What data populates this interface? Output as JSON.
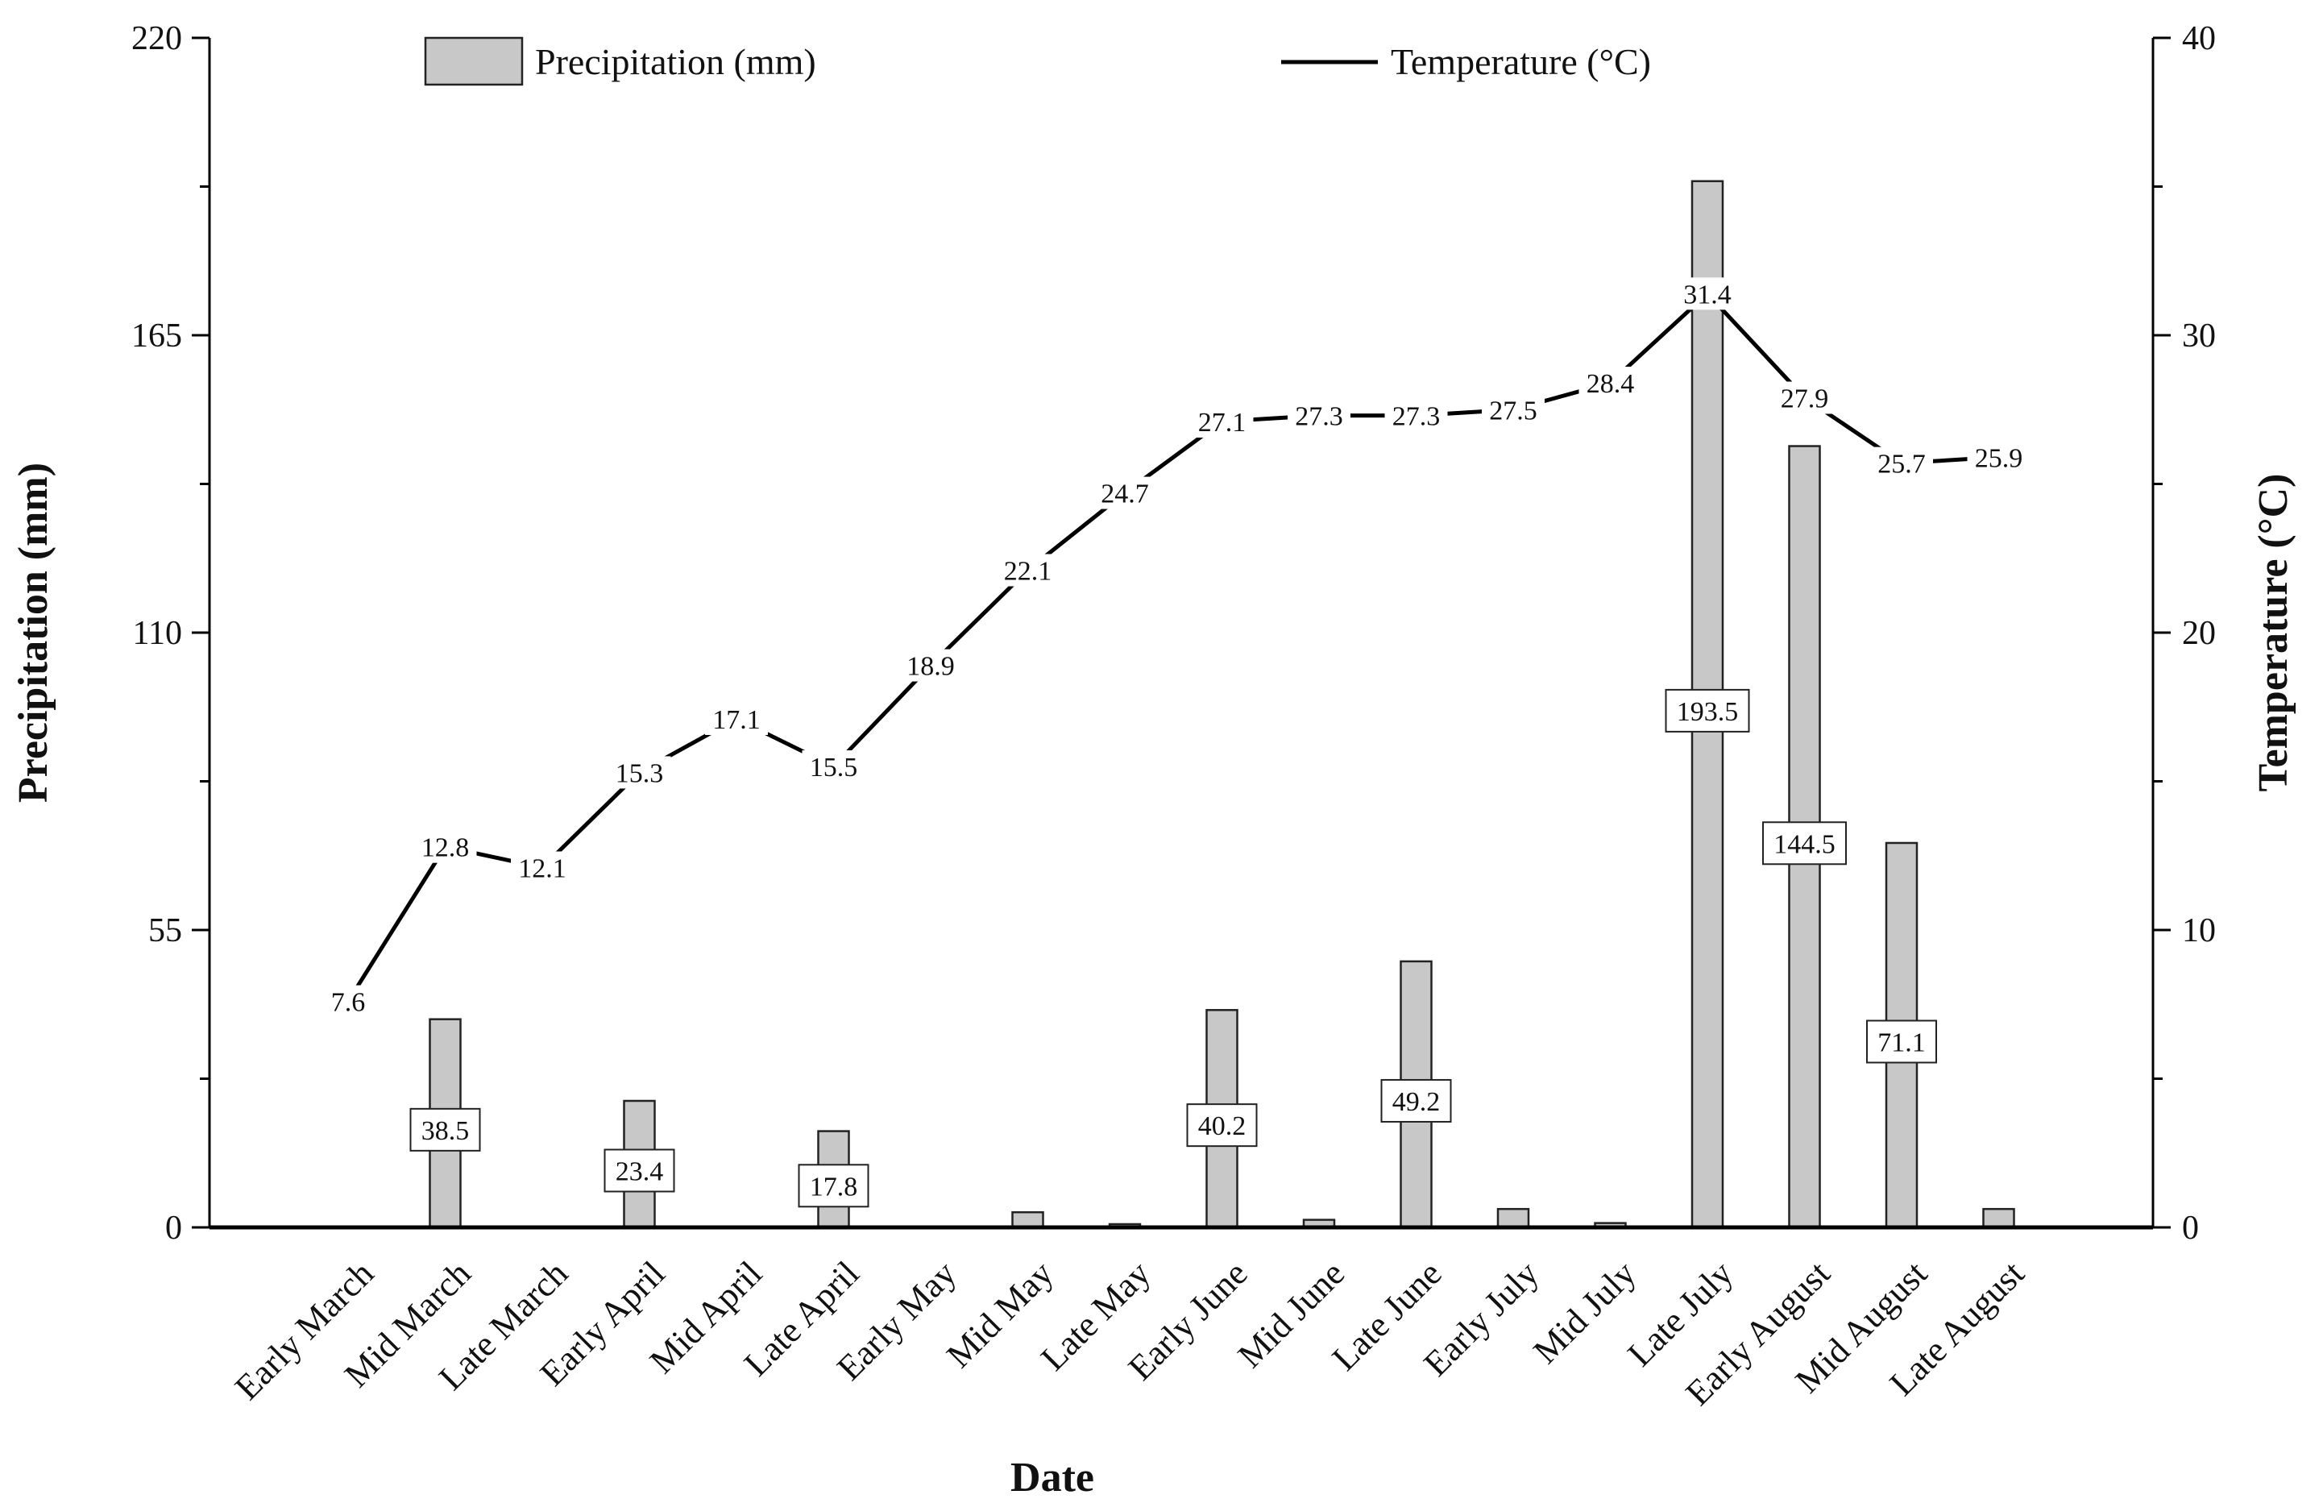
{
  "chart_data": {
    "type": "bar+line",
    "xlabel": "Date",
    "ylabel_left": "Precipitation (mm)",
    "ylabel_right": "Temperature (°C)",
    "ylim_left": [
      0,
      220
    ],
    "yticks_left": [
      "0",
      "55",
      "110",
      "165",
      "220"
    ],
    "ylim_right": [
      0,
      40
    ],
    "yticks_right": [
      "0",
      "10",
      "20",
      "30",
      "40"
    ],
    "legend_position": "top",
    "categories": [
      "Early March",
      "Mid March",
      "Late March",
      "Early April",
      "Mid April",
      "Late April",
      "Early May",
      "Mid May",
      "Late May",
      "Early June",
      "Mid June",
      "Late June",
      "Early July",
      "Mid July",
      "Late July",
      "Early August",
      "Mid August",
      "Late August"
    ],
    "series": [
      {
        "name": "Precipitation (mm)",
        "kind": "bar",
        "axis": "left",
        "color": "#c8c8c8",
        "values": [
          0,
          38.5,
          0,
          23.4,
          0,
          17.8,
          0,
          2.8,
          0.6,
          40.2,
          1.4,
          49.2,
          3.4,
          0.8,
          193.5,
          144.5,
          71.1,
          3.4
        ],
        "labels": [
          "",
          "38.5",
          "",
          "23.4",
          "",
          "17.8",
          "",
          "",
          "",
          "40.2",
          "",
          "49.2",
          "",
          "",
          "193.5",
          "144.5",
          "71.1",
          ""
        ]
      },
      {
        "name": "Temperature (°C)",
        "kind": "line",
        "axis": "right",
        "color": "#000000",
        "values": [
          7.6,
          12.8,
          12.1,
          15.3,
          17.1,
          15.5,
          18.9,
          22.1,
          24.7,
          27.1,
          27.3,
          27.3,
          27.5,
          28.4,
          31.4,
          27.9,
          25.7,
          25.9
        ],
        "labels": [
          "7.6",
          "12.8",
          "12.1",
          "15.3",
          "17.1",
          "15.5",
          "18.9",
          "22.1",
          "24.7",
          "27.1",
          "27.3",
          "27.3",
          "27.5",
          "28.4",
          "31.4",
          "27.9",
          "25.7",
          "25.9"
        ]
      }
    ]
  }
}
